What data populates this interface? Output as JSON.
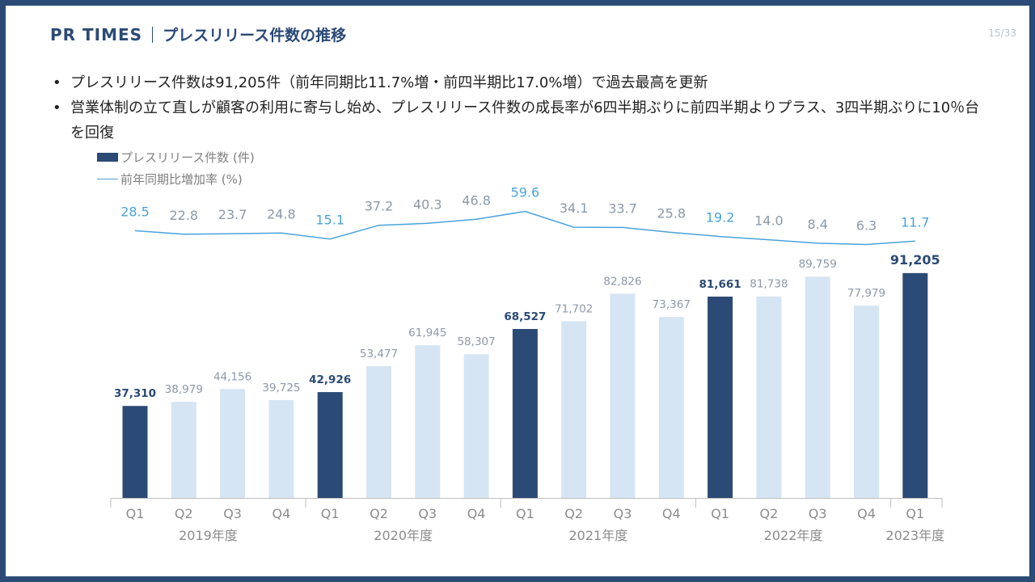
{
  "header": {
    "brand": "PR TIMES",
    "title": "プレスリリース件数の推移",
    "page": "15/33"
  },
  "bullets": [
    "プレスリリース件数は91,205件（前年同期比11.7%増・前四半期比17.0%増）で過去最高を更新",
    "営業体制の立て直しが顧客の利用に寄与し始め、プレスリリース件数の成長率が6四半期ぶりに前四半期よりプラス、3四半期ぶりに10％台を回復"
  ],
  "colors": {
    "frame": "#2b4a75",
    "bar_highlight": "#2b4a75",
    "bar_normal": "#d6e5f4",
    "line": "#4aa3dc",
    "label_highlight_bar": "#2b4a75",
    "label_normal": "#8c99a8",
    "label_line_highlight": "#4aa3dc"
  },
  "chart_data": {
    "type": "bar",
    "categories": [
      "Q1",
      "Q2",
      "Q3",
      "Q4",
      "Q1",
      "Q2",
      "Q3",
      "Q4",
      "Q1",
      "Q2",
      "Q3",
      "Q4",
      "Q1",
      "Q2",
      "Q3",
      "Q4",
      "Q1"
    ],
    "groups": [
      {
        "label": "2019年度",
        "count": 4
      },
      {
        "label": "2020年度",
        "count": 4
      },
      {
        "label": "2021年度",
        "count": 4
      },
      {
        "label": "2022年度",
        "count": 4
      },
      {
        "label": "2023年度",
        "count": 1
      }
    ],
    "series": [
      {
        "name": "プレスリリース件数 (件)",
        "type": "bar",
        "values": [
          37310,
          38979,
          44156,
          39725,
          42926,
          53477,
          61945,
          58307,
          68527,
          71702,
          82826,
          73367,
          81661,
          81738,
          89759,
          77979,
          91205
        ],
        "labels": [
          "37,310",
          "38,979",
          "44,156",
          "39,725",
          "42,926",
          "53,477",
          "61,945",
          "58,307",
          "68,527",
          "71,702",
          "82,826",
          "73,367",
          "81,661",
          "81,738",
          "89,759",
          "77,979",
          "91,205"
        ],
        "highlight": [
          true,
          false,
          false,
          false,
          true,
          false,
          false,
          false,
          true,
          false,
          false,
          false,
          true,
          false,
          false,
          false,
          true
        ]
      },
      {
        "name": "前年同期比増加率 (%)",
        "type": "line",
        "values": [
          28.5,
          22.8,
          23.7,
          24.8,
          15.1,
          37.2,
          40.3,
          46.8,
          59.6,
          34.1,
          33.7,
          25.8,
          19.2,
          14.0,
          8.4,
          6.3,
          11.7
        ],
        "labels": [
          "28.5",
          "22.8",
          "23.7",
          "24.8",
          "15.1",
          "37.2",
          "40.3",
          "46.8",
          "59.6",
          "34.1",
          "33.7",
          "25.8",
          "19.2",
          "14.0",
          "8.4",
          "6.3",
          "11.7"
        ]
      }
    ],
    "legend": [
      "プレスリリース件数 (件)",
      "前年同期比増加率 (%)"
    ],
    "legend_position": "top-left"
  }
}
